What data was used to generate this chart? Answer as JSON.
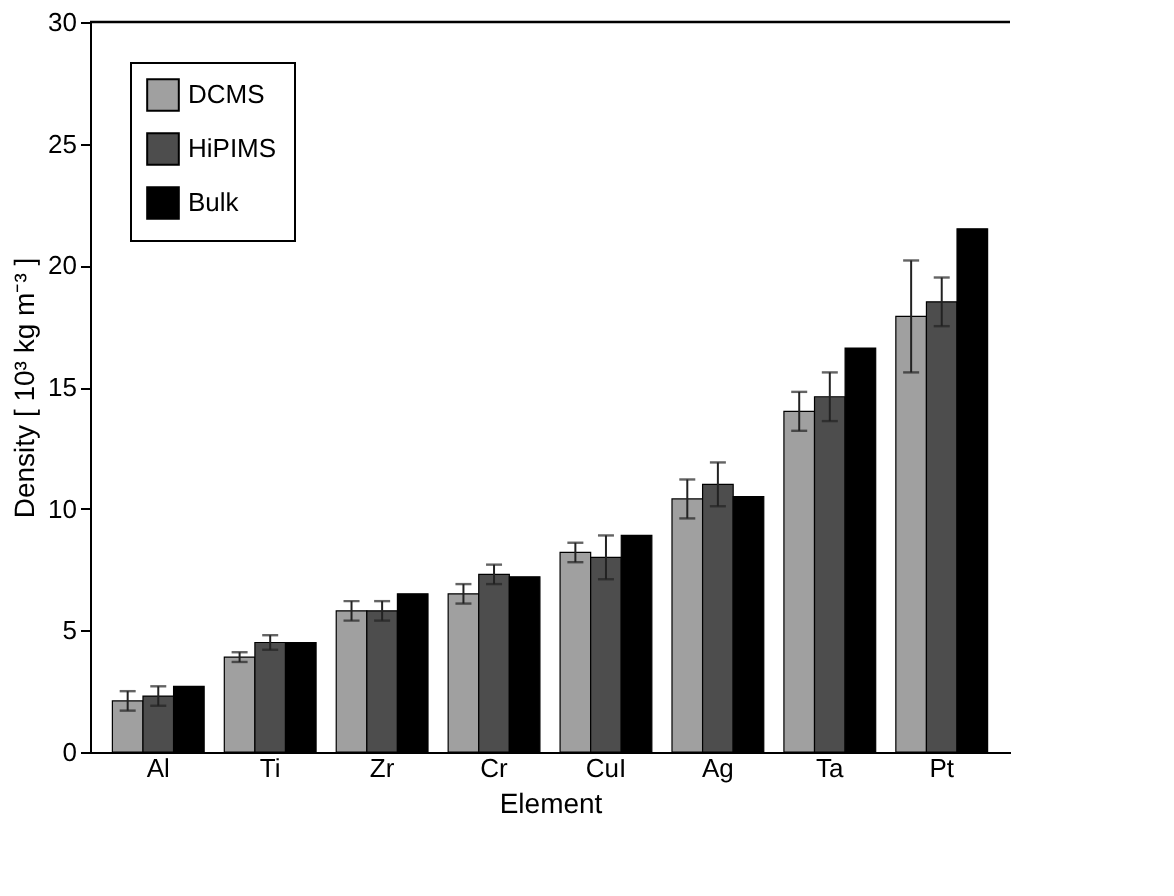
{
  "chart_data": {
    "type": "bar",
    "xlabel": "Element",
    "ylabel": "Density [ 10³ kg m⁻³ ]",
    "categories": [
      "Al",
      "Ti",
      "Zr",
      "Cr",
      "CuI",
      "Ag",
      "Ta",
      "Pt"
    ],
    "series": [
      {
        "name": "DCMS",
        "color": "#a0a0a0",
        "values": [
          2.1,
          3.9,
          5.8,
          6.5,
          8.2,
          10.4,
          14.0,
          17.9
        ],
        "errors": [
          0.4,
          0.2,
          0.4,
          0.4,
          0.4,
          0.8,
          0.8,
          2.3
        ]
      },
      {
        "name": "HiPIMS",
        "color": "#4d4d4d",
        "values": [
          2.3,
          4.5,
          5.8,
          7.3,
          8.0,
          11.0,
          14.6,
          18.5
        ],
        "errors": [
          0.4,
          0.3,
          0.4,
          0.4,
          0.9,
          0.9,
          1.0,
          1.0
        ]
      },
      {
        "name": "Bulk",
        "color": "#000000",
        "values": [
          2.7,
          4.5,
          6.5,
          7.2,
          8.9,
          10.5,
          16.6,
          21.5
        ]
      }
    ],
    "ylim": [
      0,
      30
    ],
    "yticks": [
      0,
      5,
      10,
      15,
      20,
      25,
      30
    ],
    "grid": false,
    "legend": "top left"
  }
}
